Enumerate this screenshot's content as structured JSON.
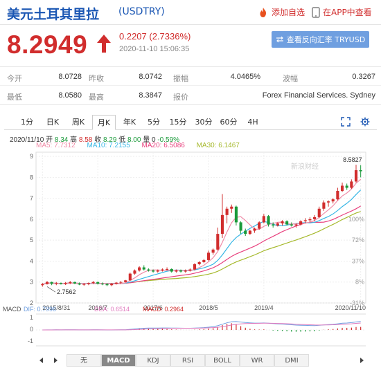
{
  "header": {
    "title": "美元土耳其里拉",
    "symbol": "(USDTRY)",
    "add_watch": "添加自选",
    "open_app": "在APP中查看"
  },
  "quote": {
    "price": "8.2949",
    "change": "0.2207 (2.7336%)",
    "time": "2020-11-10 15:06:35",
    "reverse_label": "查看反向汇率 TRYUSD"
  },
  "stats": {
    "open_label": "今开",
    "open": "8.0728",
    "prev_label": "昨收",
    "prev": "8.0742",
    "amp_label": "振幅",
    "amp": "4.0465%",
    "wave_label": "波幅",
    "wave": "0.3267",
    "low_label": "最低",
    "low": "8.0580",
    "high_label": "最高",
    "high": "8.3847",
    "source_label": "报价",
    "source": "Forex Financial Services. Sydney"
  },
  "tabs": [
    "1分",
    "日K",
    "周K",
    "月K",
    "年K",
    "5分",
    "15分",
    "30分",
    "60分",
    "4H"
  ],
  "active_tab": 3,
  "chart_info": {
    "date": "2020/11/10",
    "open_label": "开",
    "open": "8.34",
    "high_label": "高",
    "high": "8.58",
    "close_label": "收",
    "close": "8.29",
    "low_label": "低",
    "low": "8.00",
    "vol_label": "量",
    "vol": "0",
    "chg": "-0.59%",
    "ma5": "MA5: 7.7312",
    "ma10": "MA10: 7.2155",
    "ma20": "MA20: 6.5086",
    "ma30": "MA30: 6.1467"
  },
  "watermark": "新浪财经",
  "colors": {
    "up": "#d12d2d",
    "down": "#1a9a3a",
    "ma5": "#f08ca8",
    "ma10": "#35b6e5",
    "ma20": "#e8417e",
    "ma30": "#a6b92c"
  },
  "chart_data": {
    "type": "candlestick",
    "x_labels": [
      "2015/8/31",
      "2016/7",
      "2017/6",
      "2018/5",
      "2019/4",
      "2020/11/10"
    ],
    "y_ticks_left": [
      "9",
      "8",
      "7",
      "6",
      "5",
      "4",
      "3",
      "2"
    ],
    "y_ticks_right": [
      "-",
      "-",
      "-",
      "100%",
      "72%",
      "37%",
      "8%",
      "-31%"
    ],
    "annotation_max": "8.5827",
    "annotation_min": "2.7562",
    "ylim": [
      2,
      9.2
    ],
    "candles": [
      [
        2.85,
        2.95,
        2.78,
        2.9
      ],
      [
        2.9,
        3.05,
        2.88,
        3.0
      ],
      [
        3.0,
        3.02,
        2.85,
        2.92
      ],
      [
        2.92,
        3.0,
        2.85,
        2.95
      ],
      [
        2.95,
        2.98,
        2.88,
        2.9
      ],
      [
        2.9,
        3.0,
        2.86,
        2.95
      ],
      [
        2.95,
        3.05,
        2.9,
        3.0
      ],
      [
        3.0,
        3.02,
        2.9,
        2.93
      ],
      [
        2.93,
        2.98,
        2.85,
        2.88
      ],
      [
        2.88,
        2.95,
        2.82,
        2.9
      ],
      [
        2.9,
        2.98,
        2.85,
        2.95
      ],
      [
        2.95,
        3.05,
        2.9,
        3.0
      ],
      [
        3.0,
        3.02,
        2.88,
        2.92
      ],
      [
        2.92,
        2.98,
        2.85,
        2.9
      ],
      [
        2.9,
        2.95,
        2.8,
        2.85
      ],
      [
        2.85,
        2.95,
        2.8,
        2.92
      ],
      [
        2.92,
        3.0,
        2.88,
        2.97
      ],
      [
        2.97,
        3.05,
        2.9,
        3.0
      ],
      [
        3.0,
        3.1,
        2.98,
        3.08
      ],
      [
        3.08,
        3.45,
        3.05,
        3.4
      ],
      [
        3.4,
        3.6,
        3.35,
        3.55
      ],
      [
        3.55,
        3.75,
        3.5,
        3.7
      ],
      [
        3.7,
        3.8,
        3.55,
        3.6
      ],
      [
        3.6,
        3.65,
        3.5,
        3.55
      ],
      [
        3.55,
        3.6,
        3.45,
        3.5
      ],
      [
        3.5,
        3.6,
        3.45,
        3.55
      ],
      [
        3.55,
        3.65,
        3.5,
        3.6
      ],
      [
        3.6,
        3.7,
        3.55,
        3.62
      ],
      [
        3.62,
        3.65,
        3.45,
        3.5
      ],
      [
        3.5,
        3.6,
        3.45,
        3.55
      ],
      [
        3.55,
        3.6,
        3.45,
        3.5
      ],
      [
        3.5,
        3.6,
        3.45,
        3.55
      ],
      [
        3.55,
        3.65,
        3.5,
        3.6
      ],
      [
        3.6,
        3.9,
        3.55,
        3.85
      ],
      [
        3.85,
        4.0,
        3.8,
        3.95
      ],
      [
        3.95,
        4.1,
        3.9,
        4.05
      ],
      [
        4.05,
        4.5,
        4.0,
        4.4
      ],
      [
        4.4,
        4.6,
        4.3,
        4.55
      ],
      [
        4.55,
        5.6,
        4.5,
        5.3
      ],
      [
        5.3,
        7.2,
        5.1,
        6.2
      ],
      [
        6.2,
        6.6,
        5.8,
        6.5
      ],
      [
        6.5,
        6.7,
        6.3,
        6.6
      ],
      [
        6.6,
        6.65,
        5.7,
        5.85
      ],
      [
        5.85,
        5.9,
        5.3,
        5.45
      ],
      [
        5.45,
        5.55,
        5.2,
        5.3
      ],
      [
        5.3,
        5.5,
        5.25,
        5.45
      ],
      [
        5.45,
        5.6,
        5.35,
        5.55
      ],
      [
        5.55,
        5.9,
        5.5,
        5.85
      ],
      [
        5.85,
        6.25,
        5.8,
        6.15
      ],
      [
        6.15,
        6.2,
        5.65,
        5.75
      ],
      [
        5.75,
        5.85,
        5.6,
        5.7
      ],
      [
        5.7,
        5.85,
        5.65,
        5.8
      ],
      [
        5.8,
        5.95,
        5.7,
        5.9
      ],
      [
        5.9,
        5.95,
        5.7,
        5.75
      ],
      [
        5.75,
        5.85,
        5.65,
        5.7
      ],
      [
        5.7,
        5.8,
        5.6,
        5.75
      ],
      [
        5.75,
        5.95,
        5.7,
        5.9
      ],
      [
        5.9,
        6.05,
        5.8,
        5.95
      ],
      [
        5.95,
        6.1,
        5.85,
        6.0
      ],
      [
        6.0,
        6.2,
        5.9,
        6.1
      ],
      [
        6.1,
        6.6,
        6.05,
        6.5
      ],
      [
        6.5,
        6.9,
        6.4,
        6.8
      ],
      [
        6.8,
        6.9,
        6.6,
        6.85
      ],
      [
        6.85,
        7.0,
        6.75,
        6.95
      ],
      [
        6.95,
        7.5,
        6.9,
        7.35
      ],
      [
        7.35,
        7.75,
        7.3,
        7.6
      ],
      [
        7.6,
        7.7,
        7.4,
        7.5
      ],
      [
        7.5,
        7.9,
        7.45,
        7.8
      ],
      [
        7.8,
        8.6,
        7.75,
        8.34
      ],
      [
        8.34,
        8.58,
        8.0,
        8.29
      ]
    ],
    "macd": {
      "dif": "DIF: 0.7996",
      "dea": "DEA: 0.6514",
      "macd": "MACD: 0.2964"
    }
  },
  "bottom_tabs": [
    "无",
    "MACD",
    "KDJ",
    "RSI",
    "BOLL",
    "WR",
    "DMI"
  ],
  "active_bottom_tab": 1
}
